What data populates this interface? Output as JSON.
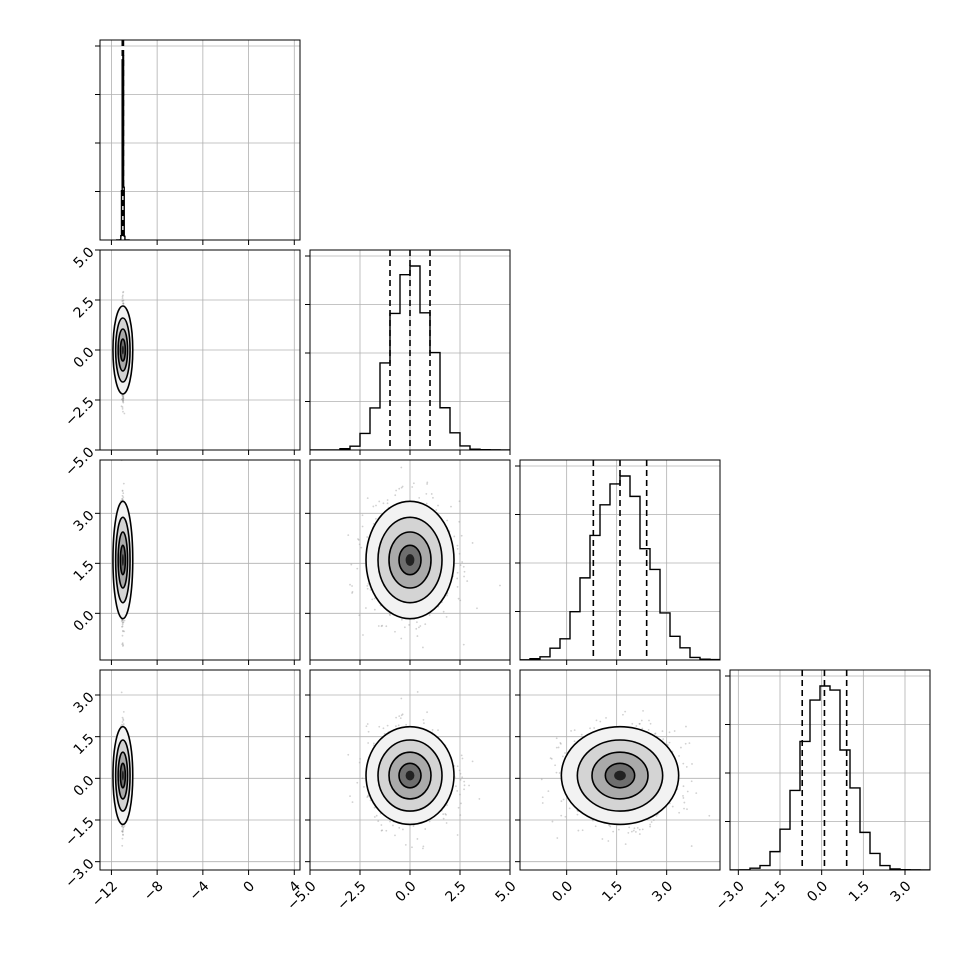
{
  "chart_data": {
    "type": "corner",
    "title": "",
    "parameters": [
      {
        "label": "",
        "range": [
          -13,
          4.5
        ],
        "ticks": [
          -12,
          -8,
          -4,
          0,
          4
        ],
        "tick_labels": [
          "−12",
          "−8",
          "−4",
          "0",
          "4"
        ],
        "mean": -11.0,
        "sigma": 0.05,
        "quantiles": [
          -11.05,
          -11.0,
          -10.95
        ],
        "show_xticks": true,
        "show_yticks": false
      },
      {
        "label": "",
        "range": [
          -5,
          5
        ],
        "ticks": [
          -5.0,
          -2.5,
          0.0,
          2.5,
          5.0
        ],
        "tick_labels": [
          "−5.0",
          "−2.5",
          "0.0",
          "2.5",
          "5.0"
        ],
        "mean": 0.0,
        "sigma": 1.0,
        "quantiles": [
          -1.0,
          0.0,
          1.0
        ],
        "show_xticks": true,
        "show_yticks": true
      },
      {
        "label": "",
        "range": [
          -1.4,
          4.6
        ],
        "ticks": [
          0.0,
          1.5,
          3.0
        ],
        "tick_labels": [
          "0.0",
          "1.5",
          "3.0"
        ],
        "mean": 1.6,
        "sigma": 0.8,
        "quantiles": [
          0.8,
          1.6,
          2.4
        ],
        "show_xticks": true,
        "show_yticks": true
      },
      {
        "label": "",
        "range": [
          -3.3,
          3.9
        ],
        "ticks": [
          -3.0,
          -1.5,
          0.0,
          1.5,
          3.0
        ],
        "tick_labels": [
          "−3.0",
          "−1.5",
          "0.0",
          "1.5",
          "3.0"
        ],
        "mean": 0.1,
        "sigma": 0.8,
        "quantiles": [
          -0.7,
          0.1,
          0.9
        ],
        "show_xticks": true,
        "show_yticks": true
      }
    ],
    "grid": true,
    "diagonal": "1D histograms with dashed quantile lines (16%, 50%, 84%)",
    "off_diagonal": "2D scatter + density with contour levels",
    "colors": {
      "ink": "#000000",
      "points": "#9a9a9a",
      "grid": "#b0b0b0"
    }
  }
}
